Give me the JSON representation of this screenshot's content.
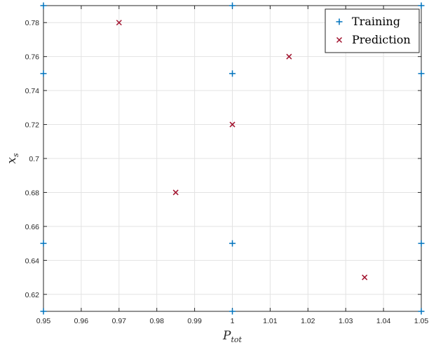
{
  "chart_data": {
    "type": "scatter",
    "title": "",
    "xlabel": {
      "main": "P",
      "sub": "tot"
    },
    "ylabel": {
      "main": "x",
      "sub": "s"
    },
    "xlim": [
      0.95,
      1.05
    ],
    "ylim": [
      0.61,
      0.79
    ],
    "xticks": [
      "0.95",
      "0.96",
      "0.97",
      "0.98",
      "0.99",
      "1",
      "1.01",
      "1.02",
      "1.03",
      "1.04",
      "1.05"
    ],
    "yticks": [
      "0.62",
      "0.64",
      "0.66",
      "0.68",
      "0.7",
      "0.72",
      "0.74",
      "0.76",
      "0.78"
    ],
    "grid": true,
    "legend_position": "top-right",
    "series": [
      {
        "name": "Training",
        "marker": "plus",
        "color": "#0072BD",
        "points": [
          [
            0.95,
            0.61
          ],
          [
            1.0,
            0.61
          ],
          [
            1.05,
            0.61
          ],
          [
            0.95,
            0.65
          ],
          [
            1.0,
            0.65
          ],
          [
            1.05,
            0.65
          ],
          [
            0.95,
            0.75
          ],
          [
            1.0,
            0.75
          ],
          [
            1.05,
            0.75
          ],
          [
            0.95,
            0.79
          ],
          [
            1.0,
            0.79
          ],
          [
            1.05,
            0.79
          ]
        ]
      },
      {
        "name": "Prediction",
        "marker": "cross",
        "color": "#A2142F",
        "points": [
          [
            0.97,
            0.78
          ],
          [
            1.015,
            0.76
          ],
          [
            1.0,
            0.72
          ],
          [
            0.985,
            0.68
          ],
          [
            1.035,
            0.63
          ]
        ]
      }
    ]
  }
}
